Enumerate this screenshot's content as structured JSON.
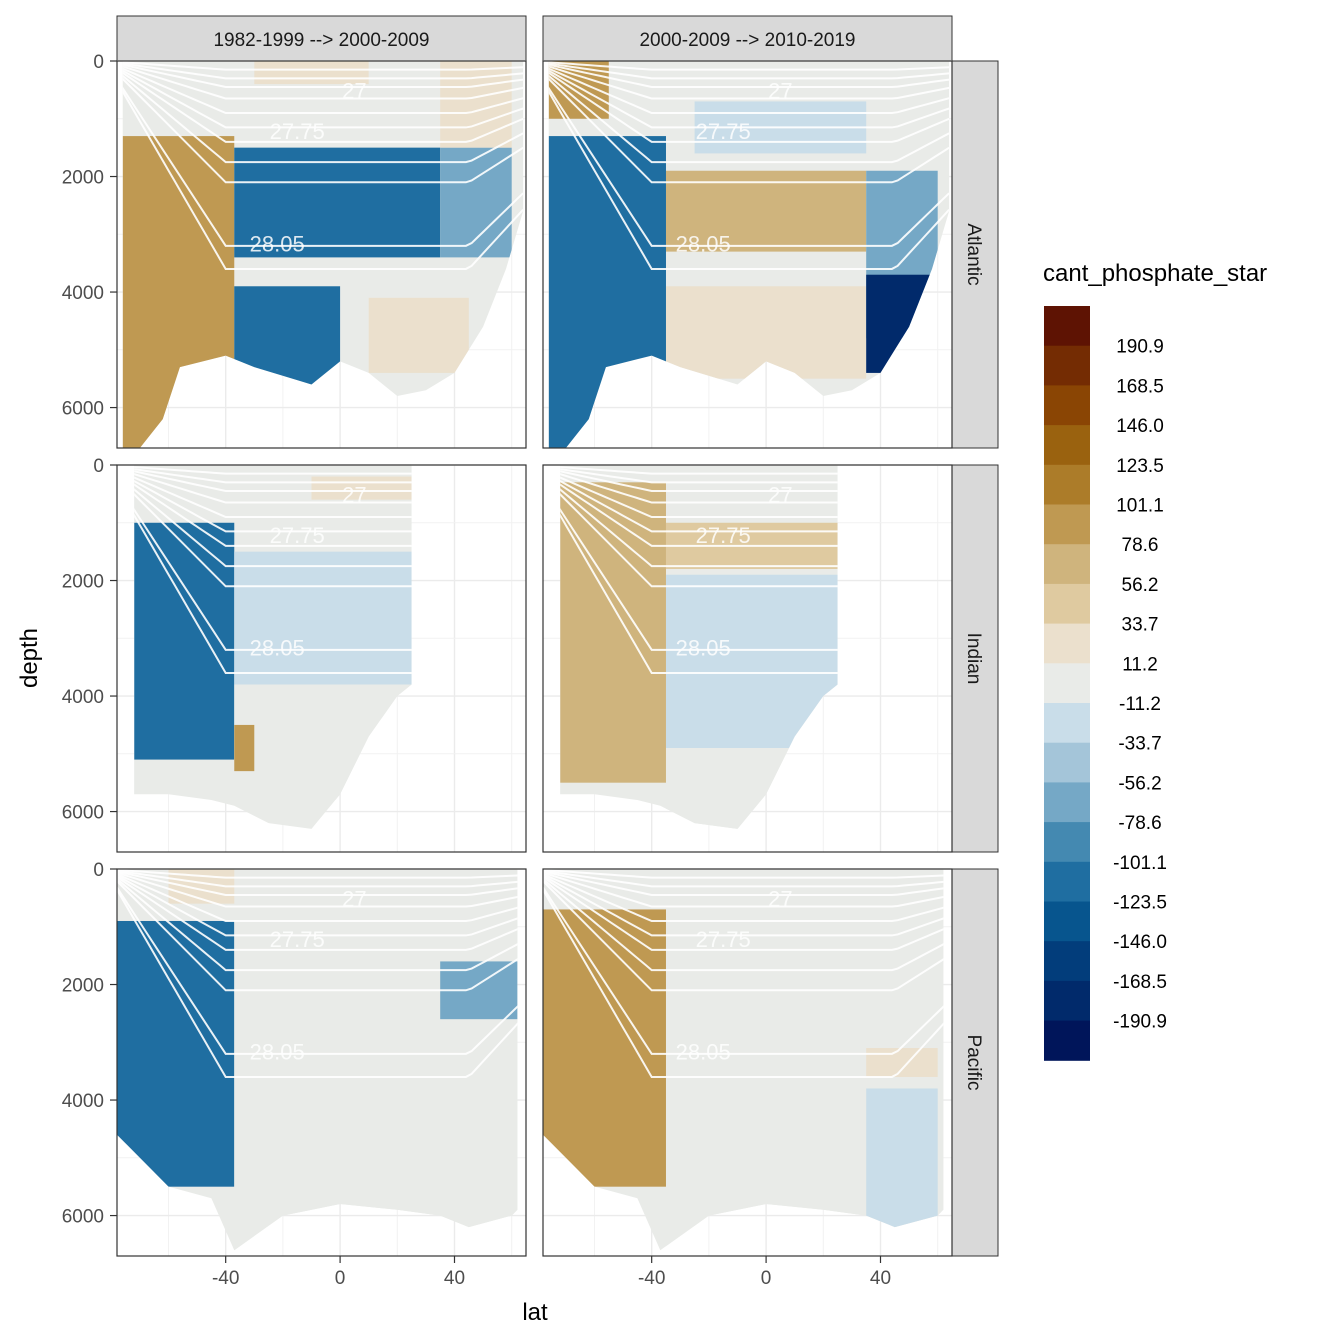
{
  "chart_data": {
    "type": "heatmap",
    "xlabel": "lat",
    "ylabel": "depth",
    "xlim": [
      -78,
      65
    ],
    "ylim": [
      6700,
      0
    ],
    "x_ticks": [
      -40,
      0,
      40
    ],
    "x_tick_labels": [
      "-40",
      "0",
      "40"
    ],
    "y_ticks": [
      0,
      2000,
      4000,
      6000
    ],
    "y_tick_labels": [
      "0",
      "2000",
      "4000",
      "6000"
    ],
    "columns": [
      "1982-1999 --> 2000-2009",
      "2000-2009 --> 2010-2019"
    ],
    "rows": [
      "Atlantic",
      "Indian",
      "Pacific"
    ],
    "legend": {
      "title": "cant_phosphate_star",
      "placement": "right",
      "breaks": [
        "190.9",
        "168.5",
        "146.0",
        "123.5",
        "101.1",
        "78.6",
        "56.2",
        "33.7",
        "11.2",
        "-11.2",
        "-33.7",
        "-56.2",
        "-78.6",
        "-101.1",
        "-123.5",
        "-146.0",
        "-168.5",
        "-190.9"
      ],
      "colors": [
        "#5e1303",
        "#742c03",
        "#8a4504",
        "#9a620f",
        "#ac7c29",
        "#bf9952",
        "#cfb47d",
        "#dfcaa0",
        "#ebe0cd",
        "#e9ebe8",
        "#c9dde9",
        "#a4c5d9",
        "#75a8c6",
        "#4489b1",
        "#1f6ea1",
        "#07558e",
        "#023d7b",
        "#012a6b",
        "#00155a"
      ]
    },
    "isopycnal_labels": [
      "27",
      "27.75",
      "28.05",
      "05"
    ],
    "grid": true,
    "panels": [
      {
        "row": "Atlantic",
        "col": "1982-1999 --> 2000-2009",
        "regions": [
          {
            "lat": [
              -76,
              -37
            ],
            "depth": [
              1300,
              6800
            ],
            "value": 90
          },
          {
            "lat": [
              -37,
              35
            ],
            "depth": [
              1500,
              3400
            ],
            "value": -115
          },
          {
            "lat": [
              -37,
              0
            ],
            "depth": [
              3900,
              5600
            ],
            "value": -110
          },
          {
            "lat": [
              35,
              60
            ],
            "depth": [
              1500,
              3400
            ],
            "value": -60
          },
          {
            "lat": [
              10,
              45
            ],
            "depth": [
              4100,
              5400
            ],
            "value": 20
          },
          {
            "lat": [
              35,
              60
            ],
            "depth": [
              0,
              1500
            ],
            "value": 30
          },
          {
            "lat": [
              -30,
              10
            ],
            "depth": [
              0,
              400
            ],
            "value": 30
          }
        ]
      },
      {
        "row": "Atlantic",
        "col": "2000-2009 --> 2010-2019",
        "regions": [
          {
            "lat": [
              -76,
              -35
            ],
            "depth": [
              1300,
              6800
            ],
            "value": -105
          },
          {
            "lat": [
              -35,
              35
            ],
            "depth": [
              1900,
              3300
            ],
            "value": 70
          },
          {
            "lat": [
              -35,
              35
            ],
            "depth": [
              3900,
              5500
            ],
            "value": 25
          },
          {
            "lat": [
              35,
              60
            ],
            "depth": [
              1900,
              4800
            ],
            "value": -60
          },
          {
            "lat": [
              35,
              60
            ],
            "depth": [
              3700,
              5400
            ],
            "value": -180
          },
          {
            "lat": [
              -25,
              35
            ],
            "depth": [
              700,
              1600
            ],
            "value": -25
          },
          {
            "lat": [
              -76,
              -55
            ],
            "depth": [
              0,
              1000
            ],
            "value": 80
          }
        ]
      },
      {
        "row": "Indian",
        "col": "1982-1999 --> 2000-2009",
        "regions": [
          {
            "lat": [
              -72,
              -37
            ],
            "depth": [
              1000,
              5100
            ],
            "value": -110
          },
          {
            "lat": [
              -37,
              25
            ],
            "depth": [
              1500,
              3800
            ],
            "value": -25
          },
          {
            "lat": [
              -37,
              25
            ],
            "depth": [
              3800,
              5800
            ],
            "value": -5
          },
          {
            "lat": [
              -37,
              -30
            ],
            "depth": [
              4500,
              5300
            ],
            "value": 100
          },
          {
            "lat": [
              -10,
              25
            ],
            "depth": [
              200,
              600
            ],
            "value": 25
          }
        ]
      },
      {
        "row": "Indian",
        "col": "2000-2009 --> 2010-2019",
        "regions": [
          {
            "lat": [
              -72,
              -35
            ],
            "depth": [
              300,
              5500
            ],
            "value": 70
          },
          {
            "lat": [
              -35,
              25
            ],
            "depth": [
              1000,
              1800
            ],
            "value": 50
          },
          {
            "lat": [
              -35,
              25
            ],
            "depth": [
              1900,
              4900
            ],
            "value": -25
          },
          {
            "lat": [
              -35,
              25
            ],
            "depth": [
              4900,
              6300
            ],
            "value": -5
          }
        ]
      },
      {
        "row": "Pacific",
        "col": "1982-1999 --> 2000-2009",
        "regions": [
          {
            "lat": [
              -78,
              -37
            ],
            "depth": [
              900,
              5500
            ],
            "value": -110
          },
          {
            "lat": [
              -37,
              62
            ],
            "depth": [
              900,
              6800
            ],
            "value": -5
          },
          {
            "lat": [
              35,
              62
            ],
            "depth": [
              1600,
              2600
            ],
            "value": -70
          },
          {
            "lat": [
              -60,
              -37
            ],
            "depth": [
              0,
              600
            ],
            "value": 25
          }
        ]
      },
      {
        "row": "Pacific",
        "col": "2000-2009 --> 2010-2019",
        "regions": [
          {
            "lat": [
              -78,
              -35
            ],
            "depth": [
              700,
              5500
            ],
            "value": 80
          },
          {
            "lat": [
              -35,
              60
            ],
            "depth": [
              900,
              6800
            ],
            "value": -5
          },
          {
            "lat": [
              35,
              60
            ],
            "depth": [
              3800,
              6300
            ],
            "value": -25
          },
          {
            "lat": [
              35,
              60
            ],
            "depth": [
              3100,
              3600
            ],
            "value": 25
          }
        ]
      }
    ]
  }
}
